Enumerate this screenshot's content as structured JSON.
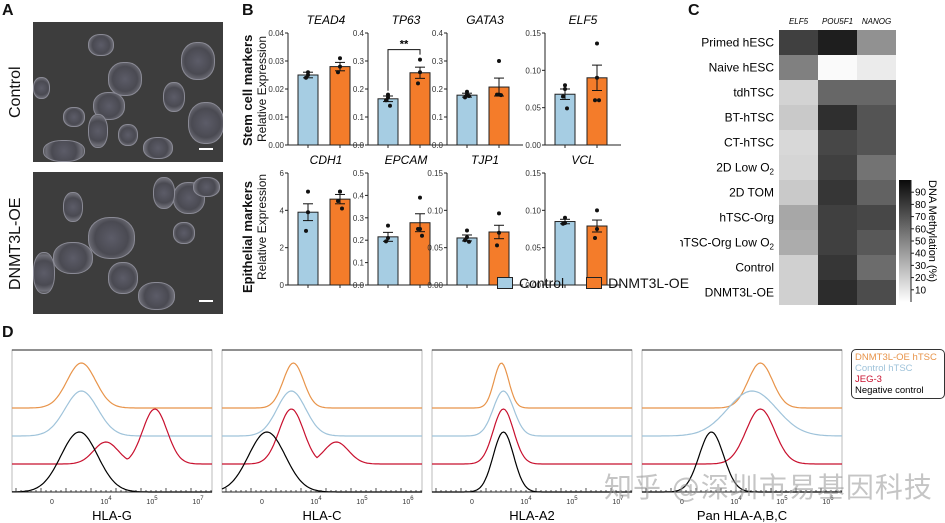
{
  "panels": {
    "A": {
      "label": "A",
      "images": [
        {
          "label": "Control"
        },
        {
          "label": "DNMT3L-OE"
        }
      ]
    },
    "B": {
      "label": "B",
      "row_labels": [
        {
          "title": "Stem cell markers",
          "subtitle": "Relative Expression"
        },
        {
          "title": "Epithelial markers",
          "subtitle": "Relative Expression"
        }
      ],
      "legend": [
        {
          "name": "Control",
          "color": "#a6cde3"
        },
        {
          "name": "DNMT3L-OE",
          "color": "#f47c2a"
        }
      ]
    },
    "C": {
      "label": "C",
      "colorbar_label": "DNA Methylation (%)",
      "colorbar_ticks": [
        "10",
        "20",
        "30",
        "40",
        "50",
        "60",
        "70",
        "80",
        "90"
      ]
    },
    "D": {
      "label": "D",
      "legend": [
        {
          "name": "DNMT3L-OE hTSC",
          "color": "#e8944a"
        },
        {
          "name": "Control hTSC",
          "color": "#9fc3da"
        },
        {
          "name": "JEG-3",
          "color": "#c8102e"
        },
        {
          "name": "Negative control",
          "color": "#000000"
        }
      ]
    }
  },
  "watermark": "知乎 @深圳市易基因科技",
  "chart_data": [
    {
      "type": "bar",
      "panel": "B",
      "title": "TEAD4",
      "categories": [
        "Control",
        "DNMT3L-OE"
      ],
      "values": [
        0.025,
        0.028
      ],
      "sem": [
        0.001,
        0.0015
      ],
      "points": [
        [
          0.026,
          0.025,
          0.024
        ],
        [
          0.031,
          0.028,
          0.026
        ]
      ],
      "ylim": [
        0,
        0.04
      ],
      "yticks": [
        "0.00",
        "0.01",
        "0.02",
        "0.03",
        "0.04"
      ],
      "ylabel": "Relative Expression",
      "significance": ""
    },
    {
      "type": "bar",
      "panel": "B",
      "title": "TP63",
      "categories": [
        "Control",
        "DNMT3L-OE"
      ],
      "values": [
        0.165,
        0.258
      ],
      "sem": [
        0.01,
        0.02
      ],
      "points": [
        [
          0.18,
          0.17,
          0.16,
          0.14
        ],
        [
          0.305,
          0.26,
          0.22
        ]
      ],
      "ylim": [
        0,
        0.4
      ],
      "yticks": [
        "0.0",
        "0.1",
        "0.2",
        "0.3",
        "0.4"
      ],
      "ylabel": "Relative Expression",
      "significance": "**"
    },
    {
      "type": "bar",
      "panel": "B",
      "title": "GATA3",
      "categories": [
        "Control",
        "DNMT3L-OE"
      ],
      "values": [
        0.178,
        0.207
      ],
      "sem": [
        0.007,
        0.032
      ],
      "points": [
        [
          0.19,
          0.18,
          0.17,
          0.175
        ],
        [
          0.3,
          0.18,
          0.18,
          0.178
        ]
      ],
      "ylim": [
        0,
        0.4
      ],
      "yticks": [
        "0.0",
        "0.1",
        "0.2",
        "0.3",
        "0.4"
      ],
      "ylabel": "Relative Expression",
      "significance": ""
    },
    {
      "type": "bar",
      "panel": "B",
      "title": "ELF5",
      "categories": [
        "Control",
        "DNMT3L-OE"
      ],
      "values": [
        0.068,
        0.09
      ],
      "sem": [
        0.007,
        0.017
      ],
      "points": [
        [
          0.08,
          0.075,
          0.065,
          0.049
        ],
        [
          0.136,
          0.09,
          0.06,
          0.06
        ]
      ],
      "ylim": [
        0,
        0.15
      ],
      "yticks": [
        "0.00",
        "0.05",
        "0.10",
        "0.15"
      ],
      "ylabel": "Relative Expression",
      "significance": ""
    },
    {
      "type": "bar",
      "panel": "B",
      "title": "CDH1",
      "categories": [
        "Control",
        "DNMT3L-OE"
      ],
      "values": [
        3.9,
        4.6
      ],
      "sem": [
        0.45,
        0.25
      ],
      "points": [
        [
          5.0,
          3.9,
          2.9
        ],
        [
          5.0,
          5.0,
          4.5,
          4.1
        ]
      ],
      "ylim": [
        0,
        6
      ],
      "yticks": [
        "0",
        "2",
        "4",
        "6"
      ],
      "ylabel": "Relative Expression",
      "significance": ""
    },
    {
      "type": "bar",
      "panel": "B",
      "title": "EPCAM",
      "categories": [
        "Control",
        "DNMT3L-OE"
      ],
      "values": [
        0.215,
        0.278
      ],
      "sem": [
        0.02,
        0.04
      ],
      "points": [
        [
          0.265,
          0.21,
          0.195
        ],
        [
          0.39,
          0.25,
          0.25,
          0.22
        ]
      ],
      "ylim": [
        0,
        0.5
      ],
      "yticks": [
        "0.0",
        "0.1",
        "0.2",
        "0.3",
        "0.4",
        "0.5"
      ],
      "ylabel": "Relative Expression",
      "significance": ""
    },
    {
      "type": "bar",
      "panel": "B",
      "title": "TJP1",
      "categories": [
        "Control",
        "DNMT3L-OE"
      ],
      "values": [
        0.063,
        0.071
      ],
      "sem": [
        0.004,
        0.009
      ],
      "points": [
        [
          0.073,
          0.064,
          0.06,
          0.058
        ],
        [
          0.096,
          0.07,
          0.053
        ]
      ],
      "ylim": [
        0,
        0.15
      ],
      "yticks": [
        "0.00",
        "0.05",
        "0.10",
        "0.15"
      ],
      "ylabel": "Relative Expression",
      "significance": ""
    },
    {
      "type": "bar",
      "panel": "B",
      "title": "VCL",
      "categories": [
        "Control",
        "DNMT3L-OE"
      ],
      "values": [
        0.085,
        0.079
      ],
      "sem": [
        0.003,
        0.008
      ],
      "points": [
        [
          0.09,
          0.083,
          0.082
        ],
        [
          0.1,
          0.075,
          0.063
        ]
      ],
      "ylim": [
        0,
        0.15
      ],
      "yticks": [
        "0.00",
        "0.05",
        "0.10",
        "0.15"
      ],
      "ylabel": "Relative Expression",
      "significance": ""
    },
    {
      "type": "heatmap",
      "panel": "C",
      "columns": [
        "ELF5",
        "POU5F1",
        "NANOG"
      ],
      "rows": [
        "Primed hESC",
        "Naive hESC",
        "tdhTSC",
        "BT-hTSC",
        "CT-hTSC",
        "2D Low O2",
        "2D TOM",
        "hTSC-Org",
        "hTSC-Org Low O2",
        "Control",
        "DNMT3L-OE"
      ],
      "values": [
        [
          78,
          92,
          45
        ],
        [
          52,
          2,
          8
        ],
        [
          18,
          62,
          62
        ],
        [
          22,
          85,
          70
        ],
        [
          16,
          75,
          70
        ],
        [
          17,
          78,
          57
        ],
        [
          22,
          82,
          64
        ],
        [
          36,
          78,
          75
        ],
        [
          34,
          78,
          68
        ],
        [
          19,
          82,
          60
        ],
        [
          19,
          86,
          73
        ]
      ],
      "colorbar_label": "DNA Methylation (%)",
      "range": [
        0,
        100
      ]
    },
    {
      "type": "line",
      "panel": "D",
      "title": "HLA-G",
      "xlabel": "HLA-G",
      "xticks": [
        "0",
        "10^4",
        "10^5",
        "10^7"
      ],
      "series": [
        {
          "name": "DNMT3L-OE hTSC",
          "peak_log10": 4.0,
          "width": 0.35
        },
        {
          "name": "Control hTSC",
          "peak_log10": 4.0,
          "width": 0.4
        },
        {
          "name": "JEG-3",
          "peak_log10": 5.8,
          "width": 0.3,
          "shoulder_log10": 4.6
        },
        {
          "name": "Negative control",
          "peak_log10": 3.95,
          "width": 0.45
        }
      ]
    },
    {
      "type": "line",
      "panel": "D",
      "title": "HLA-C",
      "xlabel": "HLA-C",
      "xticks": [
        "0",
        "10^4",
        "10^5",
        "10^6"
      ],
      "series": [
        {
          "name": "DNMT3L-OE hTSC",
          "peak_log10": 4.05,
          "width": 0.25
        },
        {
          "name": "Control hTSC",
          "peak_log10": 4.0,
          "width": 0.35
        },
        {
          "name": "JEG-3",
          "peak_log10": 4.0,
          "width": 0.3,
          "shoulder_log10": 5.1
        },
        {
          "name": "Negative control",
          "peak_log10": 3.4,
          "width": 0.45
        }
      ]
    },
    {
      "type": "line",
      "panel": "D",
      "title": "HLA-A2",
      "xlabel": "HLA-A2",
      "xticks": [
        "0",
        "10^4",
        "10^5",
        "10^7"
      ],
      "series": [
        {
          "name": "DNMT3L-OE hTSC",
          "peak_log10": 4.0,
          "width": 0.18
        },
        {
          "name": "Control hTSC",
          "peak_log10": 4.05,
          "width": 0.25
        },
        {
          "name": "JEG-3",
          "peak_log10": 4.05,
          "width": 0.25
        },
        {
          "name": "Negative control",
          "peak_log10": 4.05,
          "width": 0.25
        }
      ]
    },
    {
      "type": "line",
      "panel": "D",
      "title": "Pan HLA-A,B,C",
      "xlabel": "Pan HLA-A,B,C",
      "xticks": [
        "0",
        "10^4",
        "10^5",
        "10^6"
      ],
      "series": [
        {
          "name": "DNMT3L-OE hTSC",
          "peak_log10": 5.2,
          "width": 0.3
        },
        {
          "name": "Control hTSC",
          "peak_log10": 5.0,
          "width": 0.6
        },
        {
          "name": "JEG-3",
          "peak_log10": 5.2,
          "width": 0.35
        },
        {
          "name": "Negative control",
          "peak_log10": 4.0,
          "width": 0.3
        }
      ]
    }
  ]
}
